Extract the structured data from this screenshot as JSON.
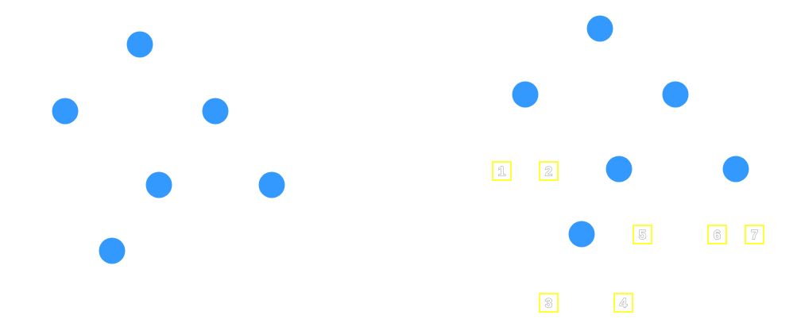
{
  "colors": {
    "background": "#ffffff",
    "dot": "#3399ff",
    "marker_border": "#ffff33",
    "marker_text": "#ffffff"
  },
  "left_panel": {
    "dot_count": 6
  },
  "right_panel": {
    "dot_count": 6,
    "markers": [
      {
        "label": "1"
      },
      {
        "label": "2"
      },
      {
        "label": "3"
      },
      {
        "label": "4"
      },
      {
        "label": "5"
      },
      {
        "label": "6"
      },
      {
        "label": "7"
      }
    ]
  }
}
